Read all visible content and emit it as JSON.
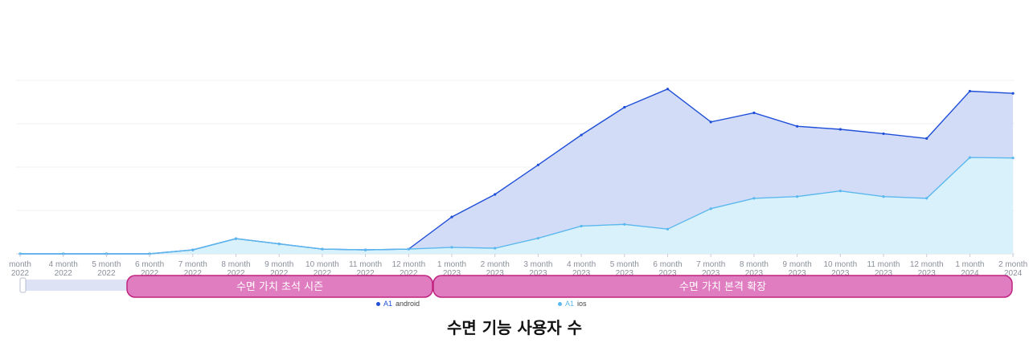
{
  "caption": "수면 기능 사용자 수",
  "colors": {
    "android_line": "#1f4fd8",
    "android_fill": "#d3dcf7",
    "ios_line": "#5bb8ee",
    "ios_fill": "#d9f1fb",
    "annotation_fill": "#e07cc0",
    "annotation_stroke": "#c0237f",
    "slider_fill": "#dde3f4"
  },
  "annotations": [
    {
      "label": "수면 가치 초석 시즌",
      "from": "6 month 2022",
      "to": "12 month 2022"
    },
    {
      "label": "수면 가치 본격 확장",
      "from": "1 month 2023",
      "to": "2 month 2024"
    }
  ],
  "legend": [
    {
      "prefix": "A1",
      "name": "android"
    },
    {
      "prefix": "A1",
      "name": "ios"
    }
  ],
  "chart_data": {
    "type": "area",
    "title": "",
    "x_labels": [
      {
        "month": "month",
        "year": "2022"
      },
      {
        "month": "4 month",
        "year": "2022"
      },
      {
        "month": "5 month",
        "year": "2022"
      },
      {
        "month": "6 month",
        "year": "2022"
      },
      {
        "month": "7 month",
        "year": "2022"
      },
      {
        "month": "8 month",
        "year": "2022"
      },
      {
        "month": "9 month",
        "year": "2022"
      },
      {
        "month": "10 month",
        "year": "2022"
      },
      {
        "month": "11 month",
        "year": "2022"
      },
      {
        "month": "12 month",
        "year": "2022"
      },
      {
        "month": "1 month",
        "year": "2023"
      },
      {
        "month": "2 month",
        "year": "2023"
      },
      {
        "month": "3 month",
        "year": "2023"
      },
      {
        "month": "4 month",
        "year": "2023"
      },
      {
        "month": "5 month",
        "year": "2023"
      },
      {
        "month": "6 month",
        "year": "2023"
      },
      {
        "month": "7 month",
        "year": "2023"
      },
      {
        "month": "8 month",
        "year": "2023"
      },
      {
        "month": "9 month",
        "year": "2023"
      },
      {
        "month": "10 month",
        "year": "2023"
      },
      {
        "month": "11 month",
        "year": "2023"
      },
      {
        "month": "12 month",
        "year": "2023"
      },
      {
        "month": "1 month",
        "year": "2024"
      },
      {
        "month": "2 month",
        "year": "2024"
      }
    ],
    "ylim": [
      0,
      4
    ],
    "grid": true,
    "y_tick_labels_shown": false,
    "legend_position": "bottom-center",
    "series": [
      {
        "name": "android",
        "values": [
          0,
          0,
          0,
          0,
          0.09,
          0.35,
          0.23,
          0.11,
          0.09,
          0.11,
          0.85,
          1.37,
          2.05,
          2.74,
          3.38,
          3.8,
          3.04,
          3.25,
          2.94,
          2.87,
          2.77,
          2.66,
          3.75,
          3.7
        ]
      },
      {
        "name": "ios",
        "values": [
          0,
          0,
          0,
          0,
          0.09,
          0.35,
          0.23,
          0.11,
          0.09,
          0.11,
          0.15,
          0.13,
          0.36,
          0.64,
          0.68,
          0.57,
          1.04,
          1.28,
          1.32,
          1.45,
          1.32,
          1.28,
          2.22,
          2.21
        ]
      }
    ]
  }
}
